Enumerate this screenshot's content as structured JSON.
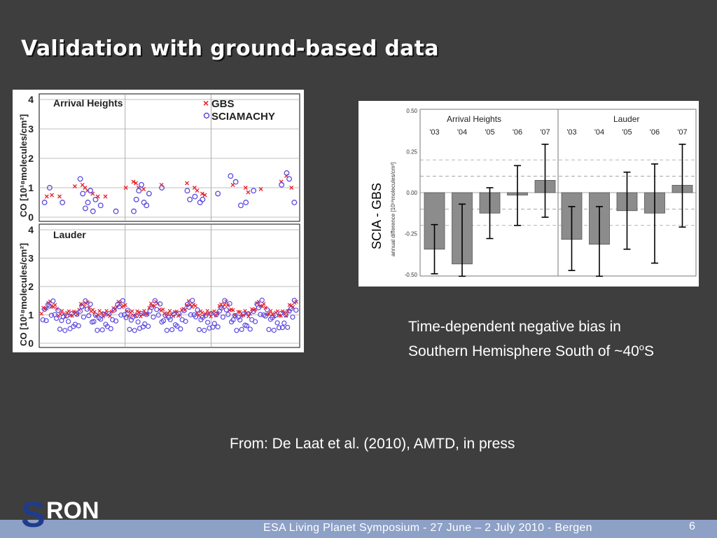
{
  "slide": {
    "title": "Validation with ground-based data",
    "caption_main": "Time-dependent negative bias in Southern Hemisphere South of ~40",
    "caption_sup": "o",
    "caption_end": "S",
    "source": "From: De Laat et al. (2010), AMTD, in press",
    "footer": "ESA Living Planet Symposium -  27 June – 2 July 2010   - Bergen",
    "page_number": "6",
    "logo_text": "RON",
    "logo_initial": "S"
  },
  "colors": {
    "background": "#3e3e3e",
    "footer": "#8da0c6",
    "gbs": "#e8202a",
    "sciamachy": "#5a4ae0",
    "bar_fill": "#8c8c8c"
  },
  "chart_data": [
    {
      "type": "scatter",
      "panels": [
        {
          "name": "Arrival Heights",
          "ylabel": "CO [10¹⁸molecules/cm²]",
          "yticks": [
            "0",
            "1",
            "2",
            "3",
            "4"
          ],
          "ylim": [
            0,
            4
          ],
          "legend": [
            "GBS",
            "SCIAMACHY"
          ],
          "legend_position": "top-right",
          "series": [
            {
              "name": "GBS",
              "marker": "x",
              "x": [
                0.02,
                0.04,
                0.07,
                0.13,
                0.16,
                0.17,
                0.18,
                0.2,
                0.22,
                0.25,
                0.33,
                0.36,
                0.37,
                0.38,
                0.4,
                0.47,
                0.57,
                0.6,
                0.61,
                0.63,
                0.64,
                0.75,
                0.8,
                0.81,
                0.86,
                0.94,
                0.96,
                0.98
              ],
              "y": [
                0.7,
                0.75,
                0.7,
                1.05,
                1.1,
                1.0,
                0.9,
                0.8,
                0.7,
                0.7,
                1.0,
                1.2,
                1.15,
                1.0,
                0.95,
                1.1,
                1.15,
                1.0,
                0.9,
                0.8,
                0.75,
                1.1,
                1.0,
                0.85,
                0.95,
                1.2,
                1.4,
                1.0
              ]
            },
            {
              "name": "SCIAMACHY",
              "marker": "o",
              "x": [
                0.01,
                0.03,
                0.08,
                0.15,
                0.16,
                0.17,
                0.18,
                0.19,
                0.2,
                0.21,
                0.23,
                0.29,
                0.36,
                0.37,
                0.38,
                0.39,
                0.4,
                0.41,
                0.42,
                0.47,
                0.57,
                0.58,
                0.6,
                0.62,
                0.63,
                0.69,
                0.74,
                0.76,
                0.78,
                0.8,
                0.83,
                0.94,
                0.96,
                0.97,
                0.99
              ],
              "y": [
                0.5,
                1.0,
                0.5,
                1.3,
                0.8,
                0.3,
                0.5,
                0.9,
                0.2,
                0.6,
                0.4,
                0.2,
                0.2,
                0.6,
                0.9,
                1.1,
                0.5,
                0.4,
                0.8,
                1.0,
                0.9,
                0.6,
                0.7,
                0.5,
                0.6,
                0.8,
                1.4,
                1.2,
                0.4,
                0.5,
                0.9,
                1.1,
                1.5,
                1.3,
                0.5
              ]
            }
          ]
        },
        {
          "name": "Lauder",
          "ylabel": "CO [10¹⁸molecules/cm²]",
          "yticks": [
            "0",
            "1",
            "2",
            "3",
            "4"
          ],
          "ylim": [
            0,
            4
          ],
          "series": [
            {
              "name": "GBS",
              "marker": "x"
            },
            {
              "name": "SCIAMACHY",
              "marker": "o"
            }
          ]
        }
      ]
    },
    {
      "type": "bar",
      "ylabel": "annual difference [10¹⁸molecules/cm²]",
      "side_label": "SCIA - GBS",
      "ylim": [
        -0.5,
        0.5
      ],
      "yticks": [
        "0.50",
        "0.25",
        "0.00",
        "-0.25",
        "-0.50"
      ],
      "groups": [
        {
          "name": "Arrival Heights",
          "categories": [
            "'03",
            "'04",
            "'05",
            "'06",
            "'07"
          ],
          "values": [
            -0.345,
            -0.435,
            -0.125,
            -0.015,
            0.075
          ],
          "error_low": [
            -0.495,
            -0.51,
            -0.28,
            -0.2,
            -0.15
          ],
          "error_high": [
            -0.195,
            -0.07,
            0.03,
            0.165,
            0.295
          ]
        },
        {
          "name": "Lauder",
          "categories": [
            "'03",
            "'04",
            "'05",
            "'06",
            "'07"
          ],
          "values": [
            -0.285,
            -0.315,
            -0.11,
            -0.125,
            0.045
          ],
          "error_low": [
            -0.475,
            -0.51,
            -0.345,
            -0.43,
            -0.21
          ],
          "error_high": [
            -0.085,
            -0.085,
            0.125,
            0.175,
            0.295
          ]
        }
      ]
    }
  ]
}
